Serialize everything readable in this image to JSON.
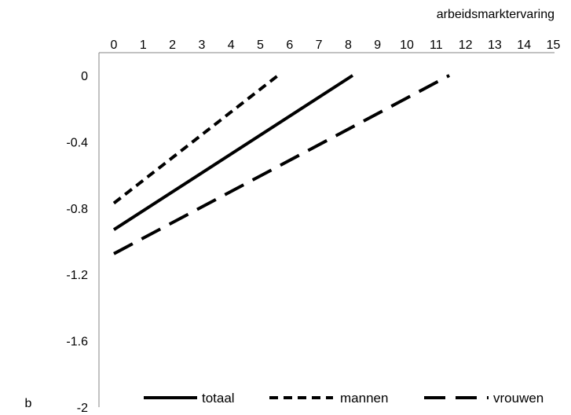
{
  "chart_data": {
    "type": "line",
    "title": "",
    "xlabel": "arbeidsmarktervaring",
    "ylabel": "b",
    "xlim": [
      0,
      15
    ],
    "ylim": [
      -2,
      0
    ],
    "x_axis_position": "top",
    "x_ticks": [
      "0",
      "1",
      "2",
      "3",
      "4",
      "5",
      "6",
      "7",
      "8",
      "9",
      "10",
      "11",
      "12",
      "13",
      "14",
      "15"
    ],
    "y_ticks": [
      "0",
      "-0.4",
      "-0.8",
      "-1.2",
      "-1.6",
      "-2"
    ],
    "y_tick_values": [
      0,
      -0.4,
      -0.8,
      -1.2,
      -1.6,
      -2
    ],
    "grid": false,
    "legend_position": "bottom",
    "series": [
      {
        "name": "totaal",
        "x": [
          0,
          8.15
        ],
        "values": [
          -0.93,
          0
        ],
        "style": "solid",
        "color": "#000000"
      },
      {
        "name": "mannen",
        "x": [
          0,
          5.6
        ],
        "values": [
          -0.77,
          0
        ],
        "style": "short-dash",
        "color": "#000000"
      },
      {
        "name": "vrouwen",
        "x": [
          0,
          11.45
        ],
        "values": [
          -1.075,
          0
        ],
        "style": "long-dash",
        "color": "#000000"
      }
    ]
  }
}
